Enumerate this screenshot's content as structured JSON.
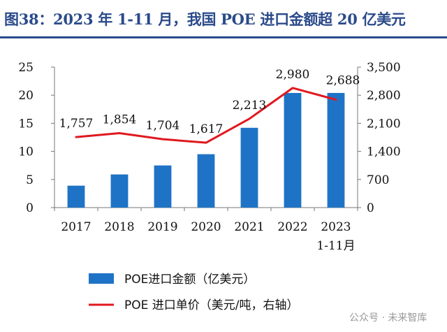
{
  "header": {
    "title": "图38：2023 年 1-11 月，我国 POE 进口金额超 20 亿美元"
  },
  "chart_data": {
    "type": "bar",
    "categories": [
      "2017",
      "2018",
      "2019",
      "2020",
      "2021",
      "2022",
      "2023"
    ],
    "category_sublabels": [
      "",
      "",
      "",
      "",
      "",
      "",
      "1-11月"
    ],
    "series": [
      {
        "name": "POE进口金额（亿美元）",
        "type": "bar",
        "axis": "left",
        "values": [
          3.9,
          5.9,
          7.5,
          9.5,
          14.2,
          20.4,
          20.4
        ],
        "color": "#1f73c6"
      },
      {
        "name": "POE 进口单价（美元/吨，右轴）",
        "type": "line",
        "axis": "right",
        "values": [
          1757,
          1854,
          1704,
          1617,
          2213,
          2980,
          2688
        ],
        "color": "#e0191f"
      }
    ],
    "line_labels": [
      "1,757",
      "1,854",
      "1,704",
      "1,617",
      "2,213",
      "2,980",
      "2,688"
    ],
    "left_axis": {
      "min": 0,
      "max": 25,
      "ticks": [
        0,
        5,
        10,
        15,
        20,
        25
      ],
      "tick_labels": [
        "0",
        "5",
        "10",
        "15",
        "20",
        "25"
      ]
    },
    "right_axis": {
      "min": 0,
      "max": 3500,
      "ticks": [
        0,
        700,
        1400,
        2100,
        2800,
        3500
      ],
      "tick_labels": [
        "0",
        "700",
        "1,400",
        "2,100",
        "2,800",
        "3,500"
      ]
    },
    "legend_position": "bottom-left",
    "grid": false
  },
  "watermark": "公众号 · 未来智库"
}
